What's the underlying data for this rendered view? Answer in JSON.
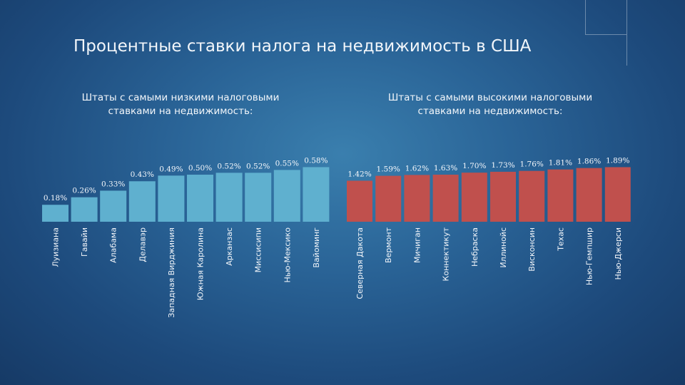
{
  "title": "Процентные ставки налога на недвижимость в США",
  "colors": {
    "low": "#5fb0cf",
    "high": "#c0504d",
    "text": "#f4f7fb"
  },
  "chart_data": [
    {
      "type": "bar",
      "subtitle": "Штаты с самыми низкими налоговыми ставками на недвижимость:",
      "unit": "%",
      "categories": [
        "Луизиана",
        "Гавайи",
        "Алабама",
        "Делавэр",
        "Западная Вирджиния",
        "Южная Каролина",
        "Арканзас",
        "Миссисипи",
        "Нью-Мексико",
        "Вайоминг"
      ],
      "values": [
        0.18,
        0.26,
        0.33,
        0.43,
        0.49,
        0.5,
        0.52,
        0.52,
        0.55,
        0.58
      ],
      "labels": [
        "0.18%",
        "0.26%",
        "0.33%",
        "0.43%",
        "0.49%",
        "0.50%",
        "0.52%",
        "0.52%",
        "0.55%",
        "0.58%"
      ],
      "color": "#5fb0cf"
    },
    {
      "type": "bar",
      "subtitle": "Штаты с самыми высокими налоговыми ставками на недвижимость:",
      "unit": "%",
      "categories": [
        "Северная Дакота",
        "Вермонт",
        "Мичиган",
        "Коннектикут",
        "Небраска",
        "Иллинойс",
        "Висконсин",
        "Техас",
        "Нью-Гемпшир",
        "Нью-Джерси"
      ],
      "values": [
        1.42,
        1.59,
        1.62,
        1.63,
        1.7,
        1.73,
        1.76,
        1.81,
        1.86,
        1.89
      ],
      "labels": [
        "1.42%",
        "1.59%",
        "1.62%",
        "1.63%",
        "1.70%",
        "1.73%",
        "1.76%",
        "1.81%",
        "1.86%",
        "1.89%"
      ],
      "color": "#c0504d"
    }
  ]
}
